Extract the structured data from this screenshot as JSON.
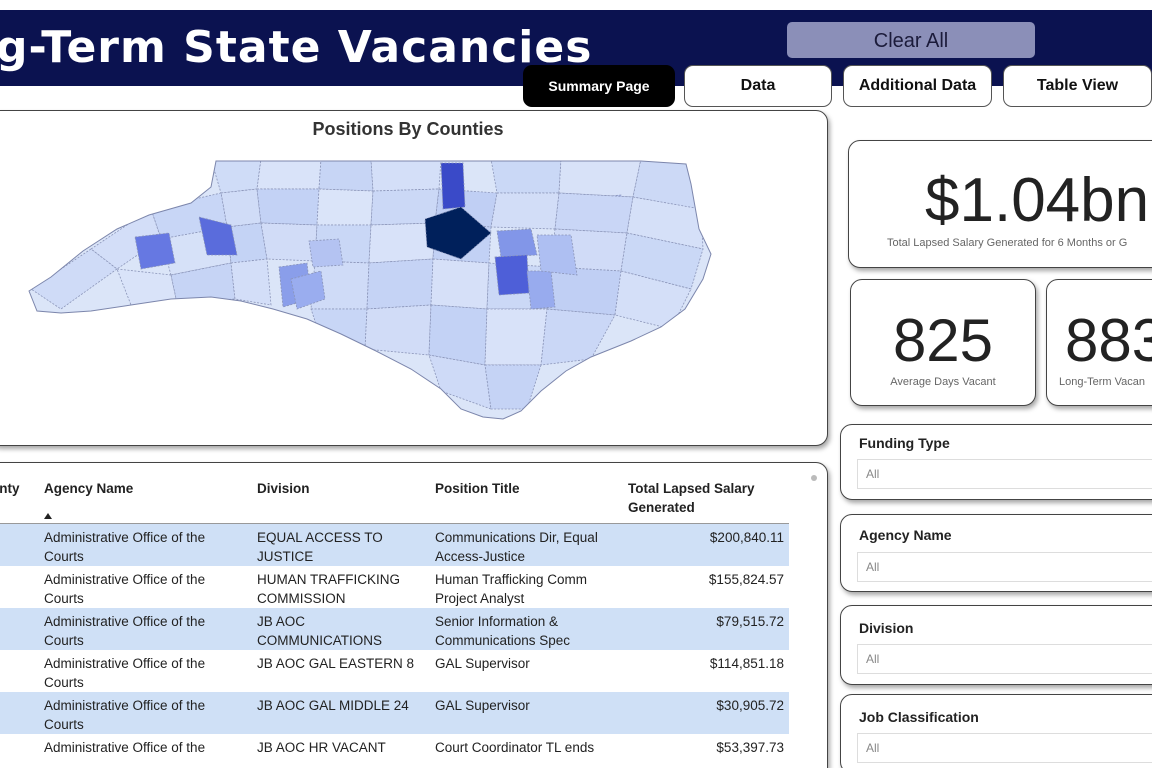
{
  "header": {
    "title": "g-Term State Vacancies",
    "clear_label": "Clear All"
  },
  "tabs": [
    {
      "label": "Summary Page",
      "active": true
    },
    {
      "label": "Data",
      "active": false
    },
    {
      "label": "Additional Data",
      "active": false
    },
    {
      "label": "Table View",
      "active": false
    }
  ],
  "map": {
    "title": "Positions By Counties",
    "colors": {
      "light": "#d6e2f8",
      "mid": "#8ea3ec",
      "strong": "#4f5fde",
      "darkest": "#00205b"
    }
  },
  "kpis": {
    "lapsed": {
      "value": "$1.04bn",
      "label": "Total Lapsed Salary Generated for 6 Months or G"
    },
    "avg_days": {
      "value": "825",
      "label": "Average Days Vacant"
    },
    "long_term": {
      "value": "883",
      "label": "Long-Term Vacan"
    }
  },
  "slicers": [
    {
      "title": "Funding Type",
      "value": "All"
    },
    {
      "title": "Agency Name",
      "value": "All"
    },
    {
      "title": "Division",
      "value": "All"
    },
    {
      "title": "Job Classification",
      "value": "All"
    }
  ],
  "table": {
    "columns": [
      "unty",
      "Agency Name",
      "Division",
      "Position Title",
      "Total Lapsed Salary Generated"
    ],
    "rows": [
      {
        "agency": "Administrative Office of the Courts",
        "division": "EQUAL ACCESS TO JUSTICE",
        "title": "Communications Dir, Equal Access-Justice",
        "salary": "$200,840.11"
      },
      {
        "agency": "Administrative Office of the Courts",
        "division": "HUMAN TRAFFICKING COMMISSION",
        "title": "Human Trafficking Comm Project Analyst",
        "salary": "$155,824.57"
      },
      {
        "agency": "Administrative Office of the Courts",
        "division": "JB AOC COMMUNICATIONS",
        "title": "Senior Information & Communications Spec",
        "salary": "$79,515.72"
      },
      {
        "agency": "Administrative Office of the Courts",
        "division": "JB AOC GAL EASTERN 8",
        "title": "GAL Supervisor",
        "salary": "$114,851.18"
      },
      {
        "agency": "Administrative Office of the Courts",
        "division": "JB AOC GAL MIDDLE 24",
        "title": "GAL Supervisor",
        "salary": "$30,905.72"
      },
      {
        "agency": "Administrative Office of the",
        "division": "JB AOC HR VACANT",
        "title": "Court Coordinator TL ends",
        "salary": "$53,397.73"
      }
    ]
  }
}
